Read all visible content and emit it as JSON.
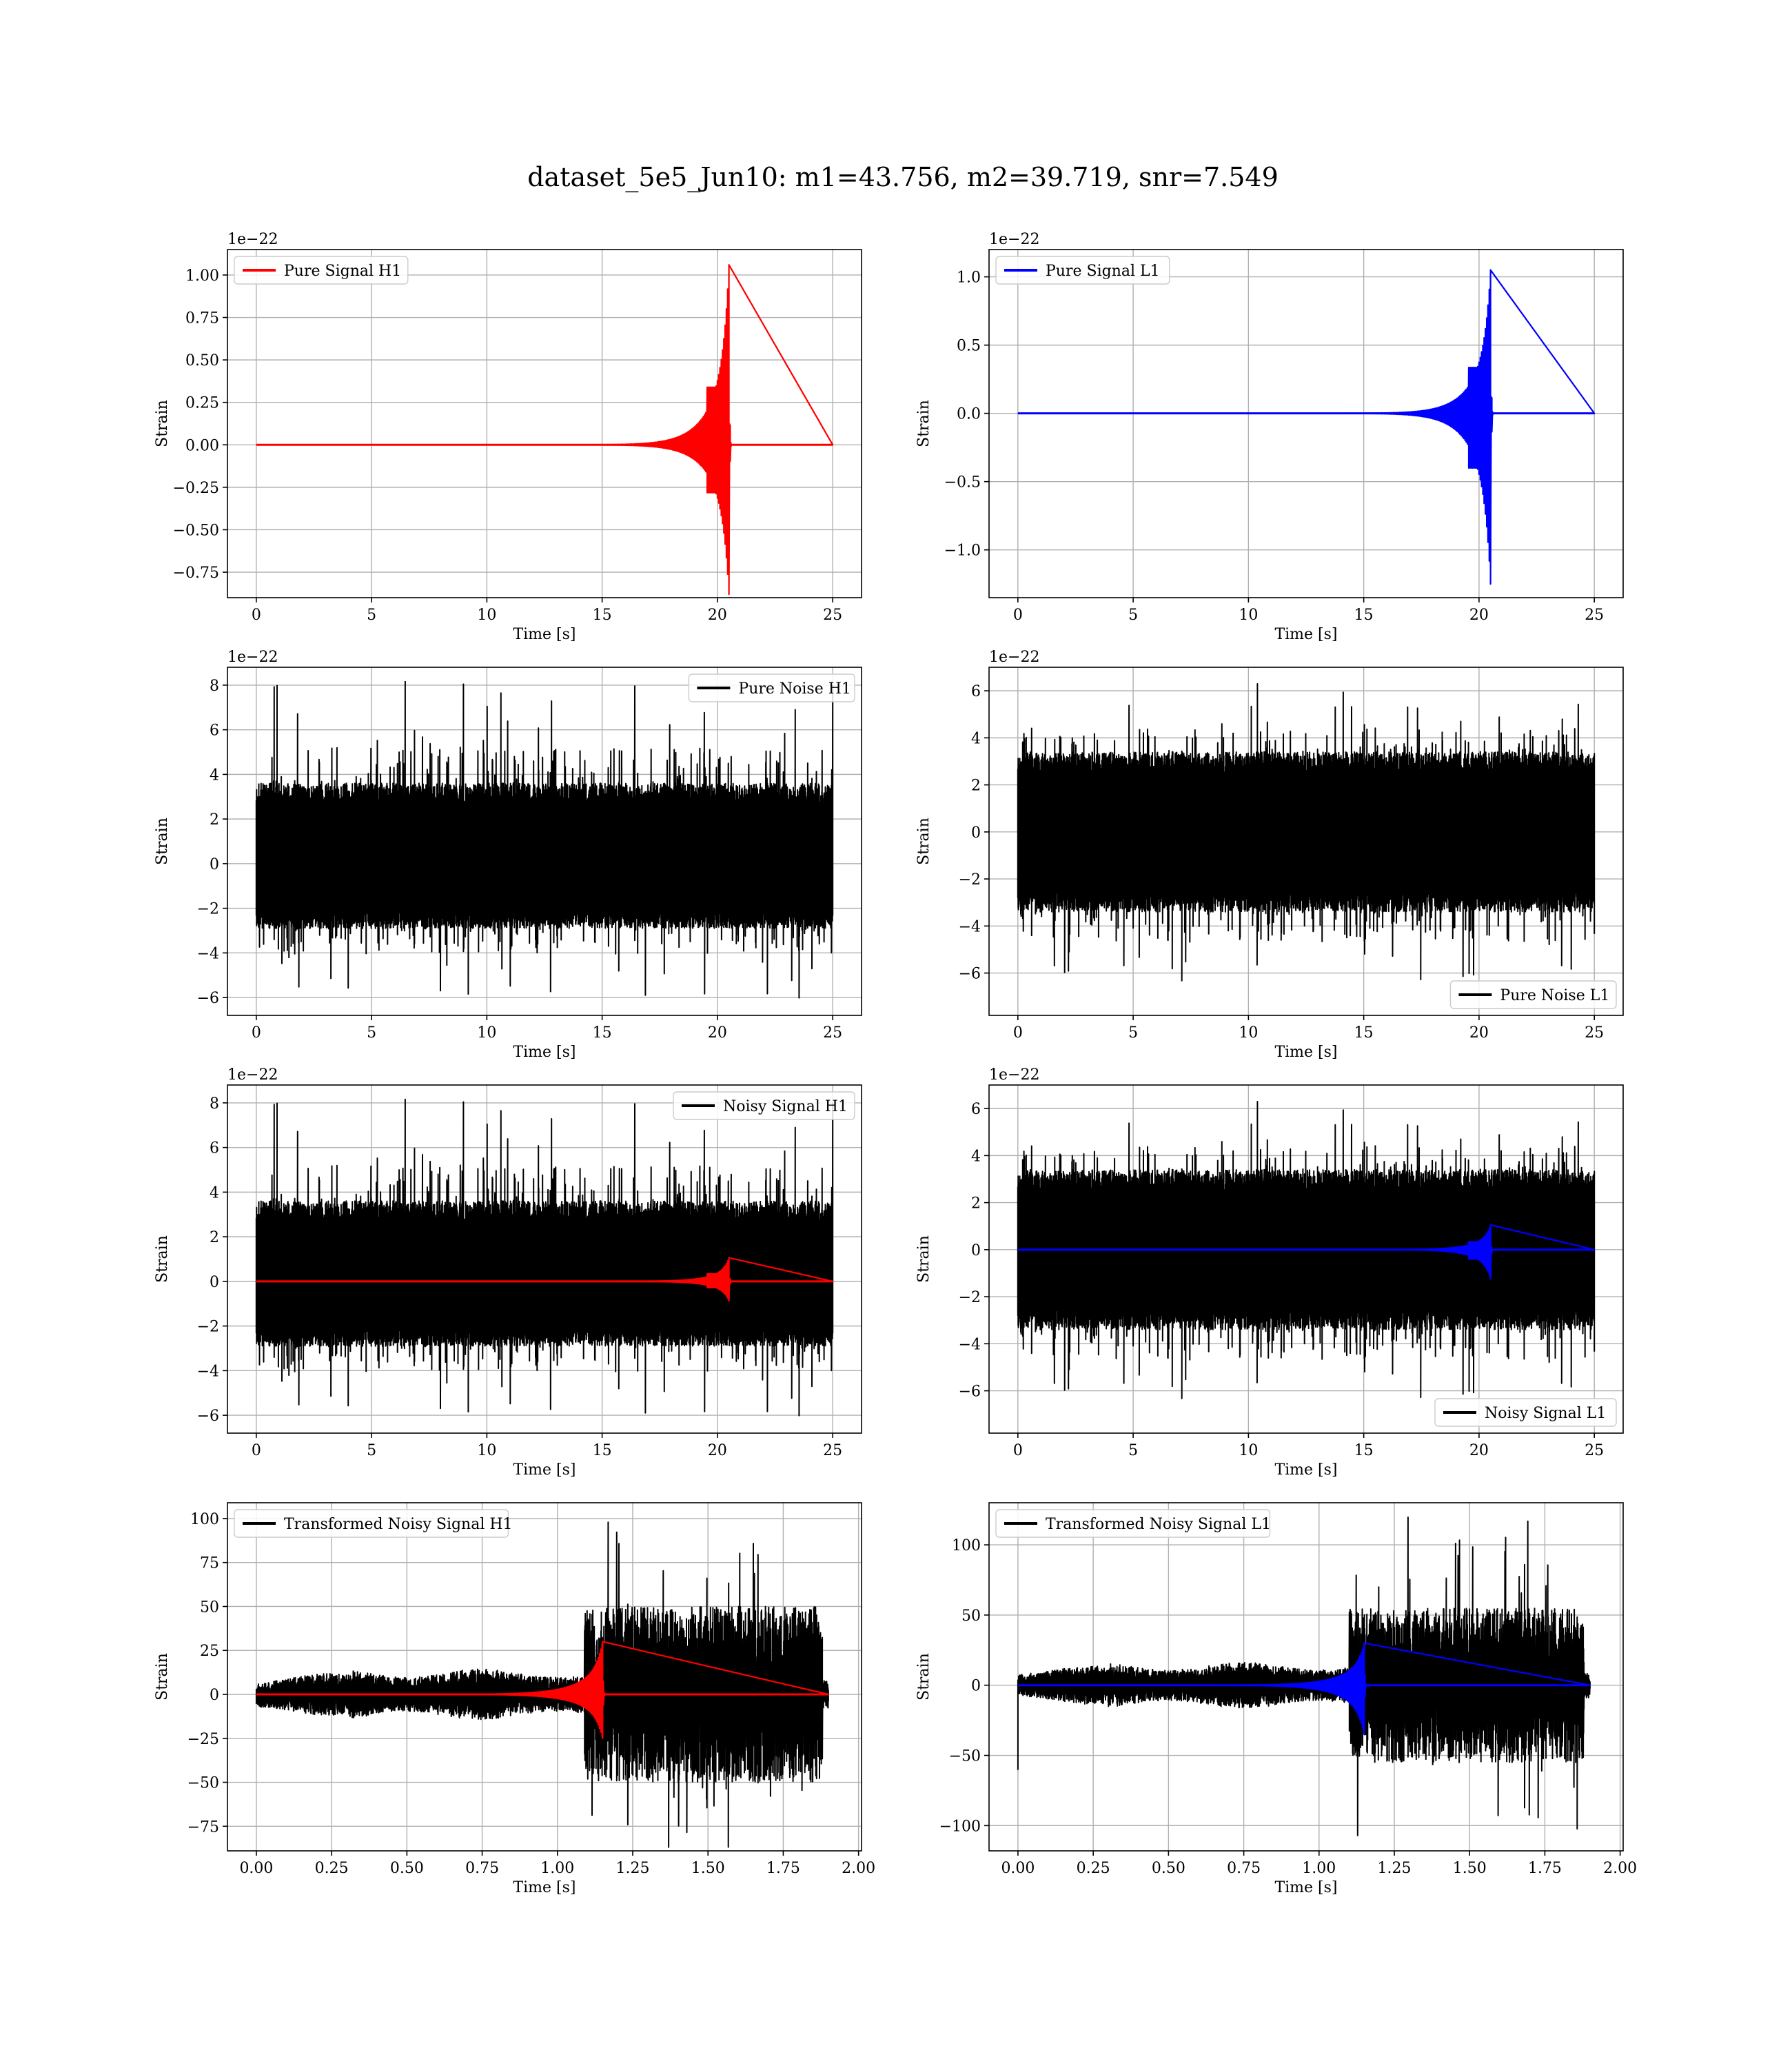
{
  "figure": {
    "title": "dataset_5e5_Jun10: m1=43.756, m2=39.719, snr=7.549"
  },
  "chart_data": [
    {
      "type": "line",
      "panel": "pure-signal-h1",
      "legend": "Pure Signal H1",
      "legend_loc": "upper-left",
      "xlabel": "Time [s]",
      "ylabel": "Strain",
      "offset_label": "1e−22",
      "xlim": [
        -1.25,
        26.25
      ],
      "ylim": [
        -0.9,
        1.15
      ],
      "xticks": [
        0,
        5,
        10,
        15,
        20,
        25
      ],
      "xtick_labels": [
        "0",
        "5",
        "10",
        "15",
        "20",
        "25"
      ],
      "yticks": [
        -0.75,
        -0.5,
        -0.25,
        0,
        0.25,
        0.5,
        0.75,
        1.0
      ],
      "ytick_labels": [
        "−0.75",
        "−0.50",
        "−0.25",
        "0.00",
        "0.25",
        "0.50",
        "0.75",
        "1.00"
      ],
      "grid": true,
      "series": [
        {
          "kind": "chirp",
          "color": "#ff0000",
          "t_start": 0,
          "t_end": 25,
          "t_merger": 20.5,
          "amp_pos": 1.06,
          "amp_neg": -0.88
        }
      ]
    },
    {
      "type": "line",
      "panel": "pure-signal-l1",
      "legend": "Pure Signal L1",
      "legend_loc": "upper-left",
      "xlabel": "Time [s]",
      "ylabel": "Strain",
      "offset_label": "1e−22",
      "xlim": [
        -1.25,
        26.25
      ],
      "ylim": [
        -1.35,
        1.2
      ],
      "xticks": [
        0,
        5,
        10,
        15,
        20,
        25
      ],
      "xtick_labels": [
        "0",
        "5",
        "10",
        "15",
        "20",
        "25"
      ],
      "yticks": [
        -1.0,
        -0.5,
        0,
        0.5,
        1.0
      ],
      "ytick_labels": [
        "−1.0",
        "−0.5",
        "0.0",
        "0.5",
        "1.0"
      ],
      "grid": true,
      "series": [
        {
          "kind": "chirp",
          "color": "#0000ff",
          "t_start": 0,
          "t_end": 25,
          "t_merger": 20.5,
          "amp_pos": 1.05,
          "amp_neg": -1.25
        }
      ]
    },
    {
      "type": "line",
      "panel": "pure-noise-h1",
      "legend": "Pure Noise H1",
      "legend_loc": "upper-right",
      "xlabel": "Time [s]",
      "ylabel": "Strain",
      "offset_label": "1e−22",
      "xlim": [
        -1.25,
        26.25
      ],
      "ylim": [
        -6.8,
        8.8
      ],
      "xticks": [
        0,
        5,
        10,
        15,
        20,
        25
      ],
      "xtick_labels": [
        "0",
        "5",
        "10",
        "15",
        "20",
        "25"
      ],
      "yticks": [
        -6,
        -4,
        -2,
        0,
        2,
        4,
        6,
        8
      ],
      "ytick_labels": [
        "−6",
        "−4",
        "−2",
        "0",
        "2",
        "4",
        "6",
        "8"
      ],
      "grid": true,
      "series": [
        {
          "kind": "noise",
          "color": "#000000",
          "t_start": 0,
          "t_end": 25,
          "band_hi": 3.6,
          "band_lo": -2.9,
          "peak_hi": 8.2,
          "peak_lo": -6.2,
          "seed": 11
        }
      ]
    },
    {
      "type": "line",
      "panel": "pure-noise-l1",
      "legend": "Pure Noise L1",
      "legend_loc": "lower-right",
      "xlabel": "Time [s]",
      "ylabel": "Strain",
      "offset_label": "1e−22",
      "xlim": [
        -1.25,
        26.25
      ],
      "ylim": [
        -7.8,
        7.0
      ],
      "xticks": [
        0,
        5,
        10,
        15,
        20,
        25
      ],
      "xtick_labels": [
        "0",
        "5",
        "10",
        "15",
        "20",
        "25"
      ],
      "yticks": [
        -6,
        -4,
        -2,
        0,
        2,
        4,
        6
      ],
      "ytick_labels": [
        "−6",
        "−4",
        "−2",
        "0",
        "2",
        "4",
        "6"
      ],
      "grid": true,
      "series": [
        {
          "kind": "noise",
          "color": "#000000",
          "t_start": 0,
          "t_end": 25,
          "band_hi": 3.4,
          "band_lo": -3.4,
          "peak_hi": 6.3,
          "peak_lo": -7.0,
          "seed": 23
        }
      ]
    },
    {
      "type": "line",
      "panel": "noisy-signal-h1",
      "legend": "Noisy Signal H1",
      "legend_loc": "upper-right",
      "xlabel": "Time [s]",
      "ylabel": "Strain",
      "offset_label": "1e−22",
      "xlim": [
        -1.25,
        26.25
      ],
      "ylim": [
        -6.8,
        8.8
      ],
      "xticks": [
        0,
        5,
        10,
        15,
        20,
        25
      ],
      "xtick_labels": [
        "0",
        "5",
        "10",
        "15",
        "20",
        "25"
      ],
      "yticks": [
        -6,
        -4,
        -2,
        0,
        2,
        4,
        6,
        8
      ],
      "ytick_labels": [
        "−6",
        "−4",
        "−2",
        "0",
        "2",
        "4",
        "6",
        "8"
      ],
      "grid": true,
      "series": [
        {
          "kind": "noise",
          "color": "#000000",
          "t_start": 0,
          "t_end": 25,
          "band_hi": 3.6,
          "band_lo": -2.9,
          "peak_hi": 8.2,
          "peak_lo": -6.2,
          "seed": 11
        },
        {
          "kind": "chirp",
          "color": "#ff0000",
          "t_start": 0,
          "t_end": 25,
          "t_merger": 20.5,
          "amp_pos": 1.06,
          "amp_neg": -0.88
        }
      ]
    },
    {
      "type": "line",
      "panel": "noisy-signal-l1",
      "legend": "Noisy Signal L1",
      "legend_loc": "lower-right",
      "xlabel": "Time [s]",
      "ylabel": "Strain",
      "offset_label": "1e−22",
      "xlim": [
        -1.25,
        26.25
      ],
      "ylim": [
        -7.8,
        7.0
      ],
      "xticks": [
        0,
        5,
        10,
        15,
        20,
        25
      ],
      "xtick_labels": [
        "0",
        "5",
        "10",
        "15",
        "20",
        "25"
      ],
      "yticks": [
        -6,
        -4,
        -2,
        0,
        2,
        4,
        6
      ],
      "ytick_labels": [
        "−6",
        "−4",
        "−2",
        "0",
        "2",
        "4",
        "6"
      ],
      "grid": true,
      "series": [
        {
          "kind": "noise",
          "color": "#000000",
          "t_start": 0,
          "t_end": 25,
          "band_hi": 3.4,
          "band_lo": -3.4,
          "peak_hi": 6.3,
          "peak_lo": -7.0,
          "seed": 23
        },
        {
          "kind": "chirp",
          "color": "#0000ff",
          "t_start": 0,
          "t_end": 25,
          "t_merger": 20.5,
          "amp_pos": 1.05,
          "amp_neg": -1.25
        }
      ]
    },
    {
      "type": "line",
      "panel": "transformed-noisy-signal-h1",
      "legend": "Transformed Noisy Signal H1",
      "legend_loc": "upper-left",
      "xlabel": "Time [s]",
      "ylabel": "Strain",
      "offset_label": "",
      "xlim": [
        -0.096,
        2.01
      ],
      "ylim": [
        -89,
        109
      ],
      "xticks": [
        0.0,
        0.25,
        0.5,
        0.75,
        1.0,
        1.25,
        1.5,
        1.75,
        2.0
      ],
      "xtick_labels": [
        "0.00",
        "0.25",
        "0.50",
        "0.75",
        "1.00",
        "1.25",
        "1.50",
        "1.75",
        "2.00"
      ],
      "yticks": [
        -75,
        -50,
        -25,
        0,
        25,
        50,
        75,
        100
      ],
      "ytick_labels": [
        "−75",
        "−50",
        "−25",
        "0",
        "25",
        "50",
        "75",
        "100"
      ],
      "grid": true,
      "series": [
        {
          "kind": "whitened",
          "color": "#000000",
          "t_start": 0,
          "t_end": 1.9,
          "t_step": 1.09,
          "pre_amp": 8,
          "post_amp": 50,
          "peak_hi": 103,
          "peak_lo": -88,
          "seed": 37
        },
        {
          "kind": "chirp",
          "color": "#ff0000",
          "t_start": 0,
          "t_end": 1.9,
          "t_merger": 1.15,
          "amp_pos": 30,
          "amp_neg": -25,
          "sharp": true
        }
      ]
    },
    {
      "type": "line",
      "panel": "transformed-noisy-signal-l1",
      "legend": "Transformed Noisy Signal L1",
      "legend_loc": "upper-left",
      "xlabel": "Time [s]",
      "ylabel": "Strain",
      "offset_label": "",
      "xlim": [
        -0.096,
        2.01
      ],
      "ylim": [
        -118,
        130
      ],
      "xticks": [
        0.0,
        0.25,
        0.5,
        0.75,
        1.0,
        1.25,
        1.5,
        1.75,
        2.0
      ],
      "xtick_labels": [
        "0.00",
        "0.25",
        "0.50",
        "0.75",
        "1.00",
        "1.25",
        "1.50",
        "1.75",
        "2.00"
      ],
      "yticks": [
        -100,
        -50,
        0,
        50,
        100
      ],
      "ytick_labels": [
        "−100",
        "−50",
        "0",
        "50",
        "100"
      ],
      "grid": true,
      "series": [
        {
          "kind": "whitened",
          "color": "#000000",
          "t_start": 0,
          "t_end": 1.9,
          "t_step": 1.1,
          "pre_amp": 9,
          "post_amp": 55,
          "peak_hi": 120,
          "peak_lo": -108,
          "seed": 53,
          "start_spike": -60
        },
        {
          "kind": "chirp",
          "color": "#0000ff",
          "t_start": 0,
          "t_end": 1.9,
          "t_merger": 1.15,
          "amp_pos": 30,
          "amp_neg": -35,
          "sharp": true
        }
      ]
    }
  ]
}
